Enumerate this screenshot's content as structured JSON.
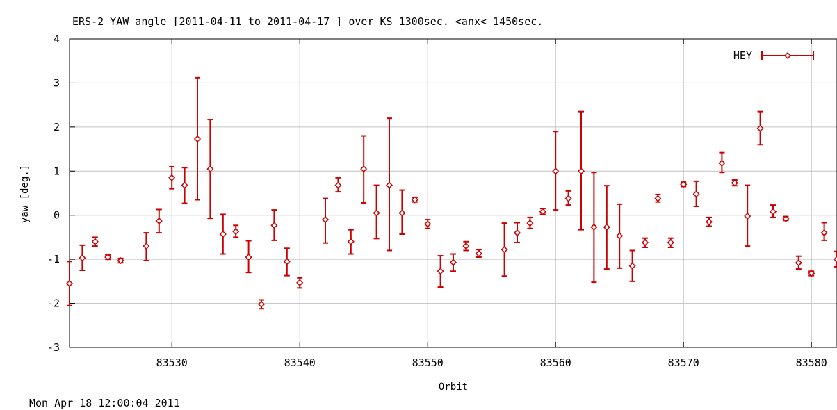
{
  "footer": {
    "timestamp": "Mon Apr 18 12:00:04 2011"
  },
  "colors": {
    "series": "#cc0000",
    "grid": "#c0c0c0",
    "axis": "#000000"
  },
  "chart_data": {
    "type": "scatter",
    "title": "ERS-2 YAW angle [2011-04-11 to 2011-04-17 ] over KS 1300sec. <anx< 1450sec.",
    "xlabel": "Orbit",
    "ylabel": "yaw [deg.]",
    "xlim": [
      83522,
      83582
    ],
    "ylim": [
      -3,
      4
    ],
    "xticks": [
      83530,
      83540,
      83550,
      83560,
      83570,
      83580
    ],
    "xtick_labels": [
      "83530",
      "83540",
      "83550",
      "83560",
      "83570",
      "83580"
    ],
    "yticks": [
      -3,
      -2,
      -1,
      0,
      1,
      2,
      3,
      4
    ],
    "ytick_labels": [
      "-3",
      "-2",
      "-1",
      "0",
      "1",
      "2",
      "3",
      "4"
    ],
    "grid": true,
    "legend": {
      "placement": "top-right"
    },
    "error_bars": true,
    "series": [
      {
        "name": "HEY",
        "color": "#cc0000",
        "points": [
          {
            "x": 83522,
            "y": -1.55,
            "lo": -2.05,
            "hi": -1.05
          },
          {
            "x": 83523,
            "y": -0.97,
            "lo": -1.25,
            "hi": -0.68
          },
          {
            "x": 83524,
            "y": -0.6,
            "lo": -0.7,
            "hi": -0.5
          },
          {
            "x": 83525,
            "y": -0.95,
            "lo": -1.0,
            "hi": -0.9
          },
          {
            "x": 83526,
            "y": -1.03,
            "lo": -1.08,
            "hi": -0.98
          },
          {
            "x": 83528,
            "y": -0.7,
            "lo": -1.03,
            "hi": -0.4
          },
          {
            "x": 83529,
            "y": -0.13,
            "lo": -0.4,
            "hi": 0.13
          },
          {
            "x": 83530,
            "y": 0.85,
            "lo": 0.6,
            "hi": 1.1
          },
          {
            "x": 83531,
            "y": 0.68,
            "lo": 0.27,
            "hi": 1.08
          },
          {
            "x": 83532,
            "y": 1.73,
            "lo": 0.35,
            "hi": 3.12
          },
          {
            "x": 83533,
            "y": 1.05,
            "lo": -0.07,
            "hi": 2.17
          },
          {
            "x": 83534,
            "y": -0.43,
            "lo": -0.88,
            "hi": 0.02
          },
          {
            "x": 83535,
            "y": -0.37,
            "lo": -0.5,
            "hi": -0.23
          },
          {
            "x": 83536,
            "y": -0.95,
            "lo": -1.3,
            "hi": -0.58
          },
          {
            "x": 83537,
            "y": -2.02,
            "lo": -2.12,
            "hi": -1.92
          },
          {
            "x": 83538,
            "y": -0.23,
            "lo": -0.57,
            "hi": 0.12
          },
          {
            "x": 83539,
            "y": -1.05,
            "lo": -1.37,
            "hi": -0.75
          },
          {
            "x": 83540,
            "y": -1.53,
            "lo": -1.65,
            "hi": -1.42
          },
          {
            "x": 83542,
            "y": -0.1,
            "lo": -0.63,
            "hi": 0.38
          },
          {
            "x": 83543,
            "y": 0.68,
            "lo": 0.53,
            "hi": 0.85
          },
          {
            "x": 83544,
            "y": -0.6,
            "lo": -0.88,
            "hi": -0.33
          },
          {
            "x": 83545,
            "y": 1.05,
            "lo": 0.28,
            "hi": 1.8
          },
          {
            "x": 83546,
            "y": 0.05,
            "lo": -0.53,
            "hi": 0.68
          },
          {
            "x": 83547,
            "y": 0.68,
            "lo": -0.8,
            "hi": 2.2
          },
          {
            "x": 83548,
            "y": 0.05,
            "lo": -0.43,
            "hi": 0.57
          },
          {
            "x": 83549,
            "y": 0.35,
            "lo": 0.3,
            "hi": 0.4
          },
          {
            "x": 83550,
            "y": -0.2,
            "lo": -0.3,
            "hi": -0.1
          },
          {
            "x": 83551,
            "y": -1.27,
            "lo": -1.63,
            "hi": -0.92
          },
          {
            "x": 83552,
            "y": -1.07,
            "lo": -1.27,
            "hi": -0.88
          },
          {
            "x": 83553,
            "y": -0.7,
            "lo": -0.8,
            "hi": -0.6
          },
          {
            "x": 83554,
            "y": -0.87,
            "lo": -0.95,
            "hi": -0.78
          },
          {
            "x": 83556,
            "y": -0.78,
            "lo": -1.38,
            "hi": -0.18
          },
          {
            "x": 83557,
            "y": -0.4,
            "lo": -0.62,
            "hi": -0.17
          },
          {
            "x": 83558,
            "y": -0.18,
            "lo": -0.3,
            "hi": -0.05
          },
          {
            "x": 83559,
            "y": 0.08,
            "lo": 0.02,
            "hi": 0.15
          },
          {
            "x": 83560,
            "y": 1.0,
            "lo": 0.12,
            "hi": 1.9
          },
          {
            "x": 83561,
            "y": 0.38,
            "lo": 0.23,
            "hi": 0.55
          },
          {
            "x": 83562,
            "y": 1.0,
            "lo": -0.33,
            "hi": 2.35
          },
          {
            "x": 83563,
            "y": -0.27,
            "lo": -1.52,
            "hi": 0.97
          },
          {
            "x": 83564,
            "y": -0.27,
            "lo": -1.22,
            "hi": 0.67
          },
          {
            "x": 83565,
            "y": -0.47,
            "lo": -1.2,
            "hi": 0.25
          },
          {
            "x": 83566,
            "y": -1.15,
            "lo": -1.5,
            "hi": -0.8
          },
          {
            "x": 83567,
            "y": -0.62,
            "lo": -0.73,
            "hi": -0.52
          },
          {
            "x": 83568,
            "y": 0.38,
            "lo": 0.3,
            "hi": 0.47
          },
          {
            "x": 83569,
            "y": -0.62,
            "lo": -0.73,
            "hi": -0.52
          },
          {
            "x": 83570,
            "y": 0.7,
            "lo": 0.65,
            "hi": 0.75
          },
          {
            "x": 83571,
            "y": 0.48,
            "lo": 0.2,
            "hi": 0.77
          },
          {
            "x": 83572,
            "y": -0.15,
            "lo": -0.25,
            "hi": -0.05
          },
          {
            "x": 83573,
            "y": 1.18,
            "lo": 0.97,
            "hi": 1.42
          },
          {
            "x": 83574,
            "y": 0.73,
            "lo": 0.67,
            "hi": 0.8
          },
          {
            "x": 83575,
            "y": -0.02,
            "lo": -0.7,
            "hi": 0.68
          },
          {
            "x": 83576,
            "y": 1.97,
            "lo": 1.6,
            "hi": 2.35
          },
          {
            "x": 83577,
            "y": 0.08,
            "lo": -0.05,
            "hi": 0.23
          },
          {
            "x": 83578,
            "y": -0.08,
            "lo": -0.12,
            "hi": -0.03
          },
          {
            "x": 83579,
            "y": -1.08,
            "lo": -1.22,
            "hi": -0.93
          },
          {
            "x": 83580,
            "y": -1.32,
            "lo": -1.37,
            "hi": -1.27
          },
          {
            "x": 83581,
            "y": -0.4,
            "lo": -0.57,
            "hi": -0.17
          },
          {
            "x": 83582,
            "y": -1.0,
            "lo": -1.17,
            "hi": -0.82
          }
        ]
      }
    ]
  }
}
